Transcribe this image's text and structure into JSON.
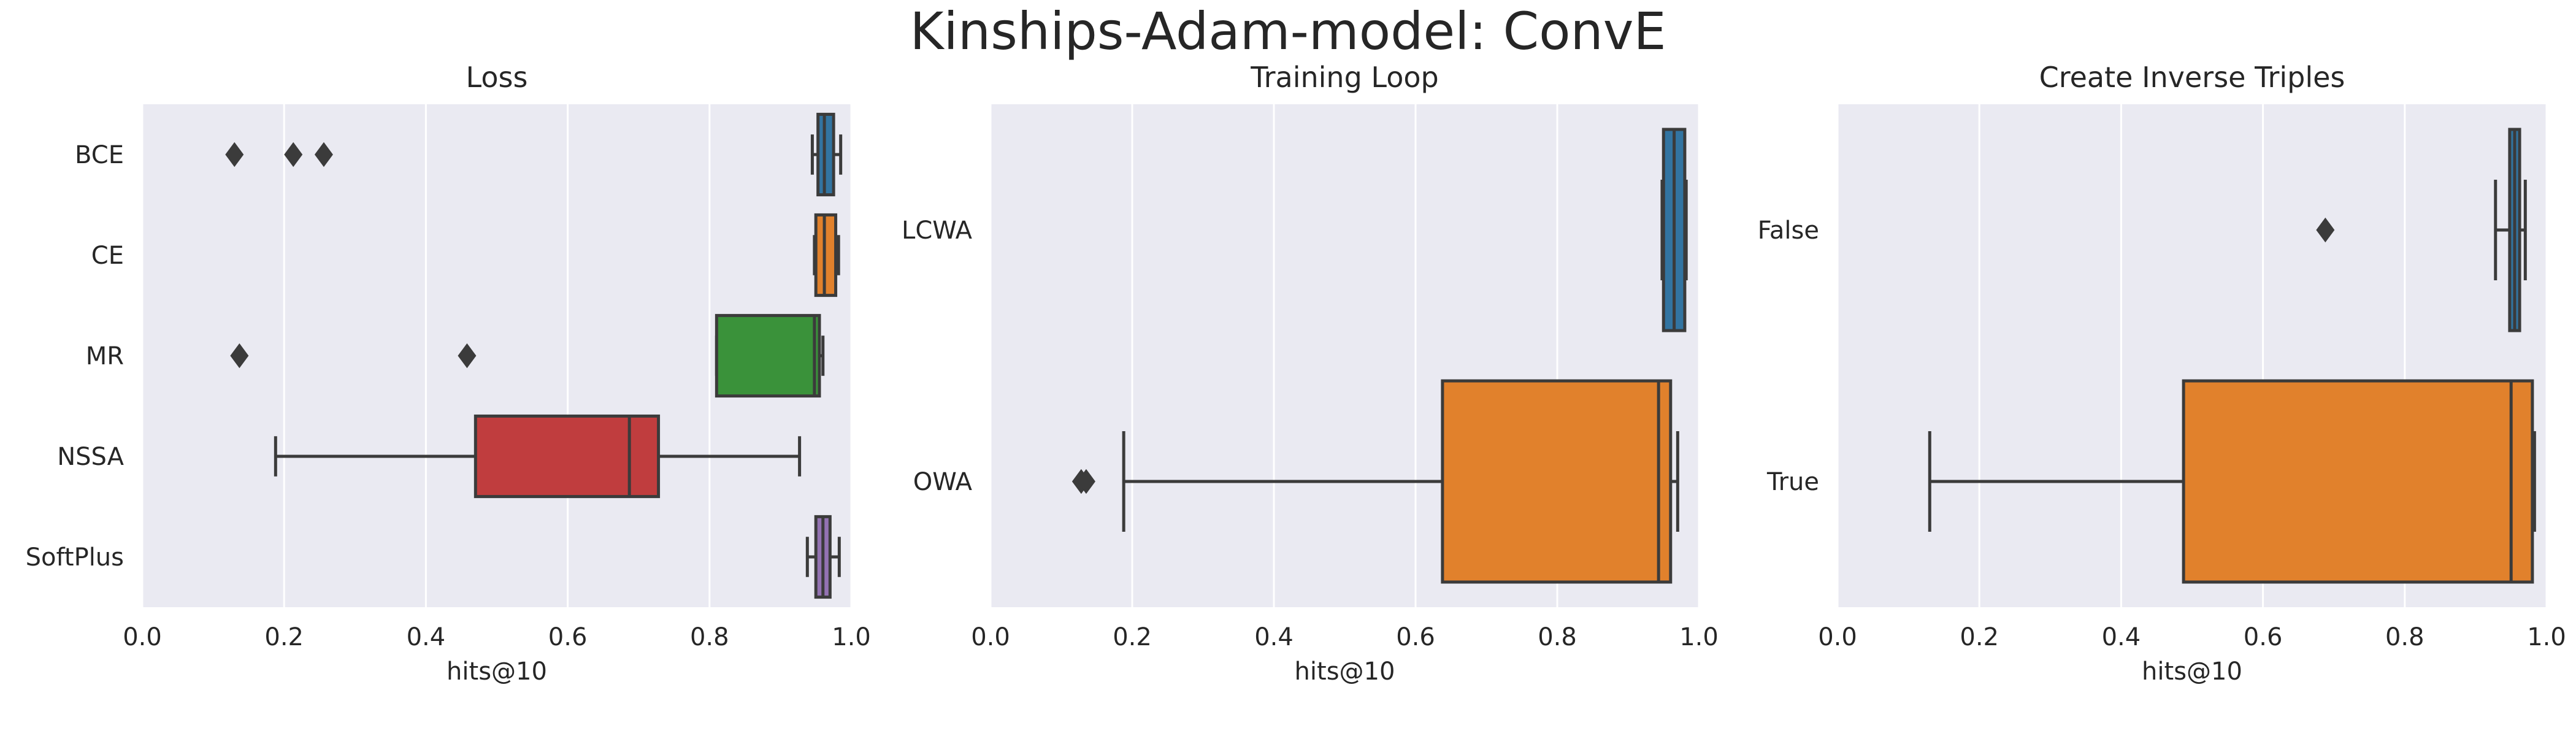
{
  "title": "Kinships-Adam-model: ConvE",
  "colors": {
    "background": "#eaeaf2",
    "grid": "#ffffff",
    "line": "#3b3b3b",
    "text": "#262626",
    "palette": [
      "#3274a1",
      "#e1812c",
      "#3a923a",
      "#c03d3e",
      "#9372b2"
    ]
  },
  "chart_data": [
    {
      "type": "box",
      "orientation": "horizontal",
      "title": "Loss",
      "xlabel": "hits@10",
      "ylabel": "",
      "xlim": [
        0.0,
        1.0
      ],
      "xticks": [
        "0.0",
        "0.2",
        "0.4",
        "0.6",
        "0.8",
        "1.0"
      ],
      "grid": true,
      "categories": [
        "BCE",
        "CE",
        "MR",
        "NSSA",
        "SoftPlus"
      ],
      "boxes": [
        {
          "whislo": 0.945,
          "q1": 0.953,
          "med": 0.962,
          "q3": 0.975,
          "whishi": 0.985,
          "fliers": [
            0.13,
            0.213,
            0.256
          ]
        },
        {
          "whislo": 0.948,
          "q1": 0.95,
          "med": 0.962,
          "q3": 0.978,
          "whishi": 0.982,
          "fliers": []
        },
        {
          "whislo": 0.81,
          "q1": 0.81,
          "med": 0.948,
          "q3": 0.955,
          "whishi": 0.96,
          "fliers": [
            0.137,
            0.458
          ]
        },
        {
          "whislo": 0.188,
          "q1": 0.47,
          "med": 0.687,
          "q3": 0.728,
          "whishi": 0.927,
          "fliers": []
        },
        {
          "whislo": 0.938,
          "q1": 0.95,
          "med": 0.96,
          "q3": 0.97,
          "whishi": 0.983,
          "fliers": []
        }
      ]
    },
    {
      "type": "box",
      "orientation": "horizontal",
      "title": "Training Loop",
      "xlabel": "hits@10",
      "ylabel": "",
      "xlim": [
        0.0,
        1.0
      ],
      "xticks": [
        "0.0",
        "0.2",
        "0.4",
        "0.6",
        "0.8",
        "1.0"
      ],
      "grid": true,
      "categories": [
        "LCWA",
        "OWA"
      ],
      "boxes": [
        {
          "whislo": 0.948,
          "q1": 0.95,
          "med": 0.965,
          "q3": 0.98,
          "whishi": 0.982,
          "fliers": []
        },
        {
          "whislo": 0.188,
          "q1": 0.638,
          "med": 0.943,
          "q3": 0.96,
          "whishi": 0.97,
          "fliers": [
            0.128,
            0.135
          ]
        }
      ]
    },
    {
      "type": "box",
      "orientation": "horizontal",
      "title": "Create Inverse Triples",
      "xlabel": "hits@10",
      "ylabel": "",
      "xlim": [
        0.0,
        1.0
      ],
      "xticks": [
        "0.0",
        "0.2",
        "0.4",
        "0.6",
        "0.8",
        "1.0"
      ],
      "grid": true,
      "categories": [
        "False",
        "True"
      ],
      "boxes": [
        {
          "whislo": 0.928,
          "q1": 0.948,
          "med": 0.955,
          "q3": 0.962,
          "whishi": 0.97,
          "fliers": [
            0.688
          ]
        },
        {
          "whislo": 0.13,
          "q1": 0.488,
          "med": 0.95,
          "q3": 0.98,
          "whishi": 0.983,
          "fliers": []
        }
      ]
    }
  ]
}
